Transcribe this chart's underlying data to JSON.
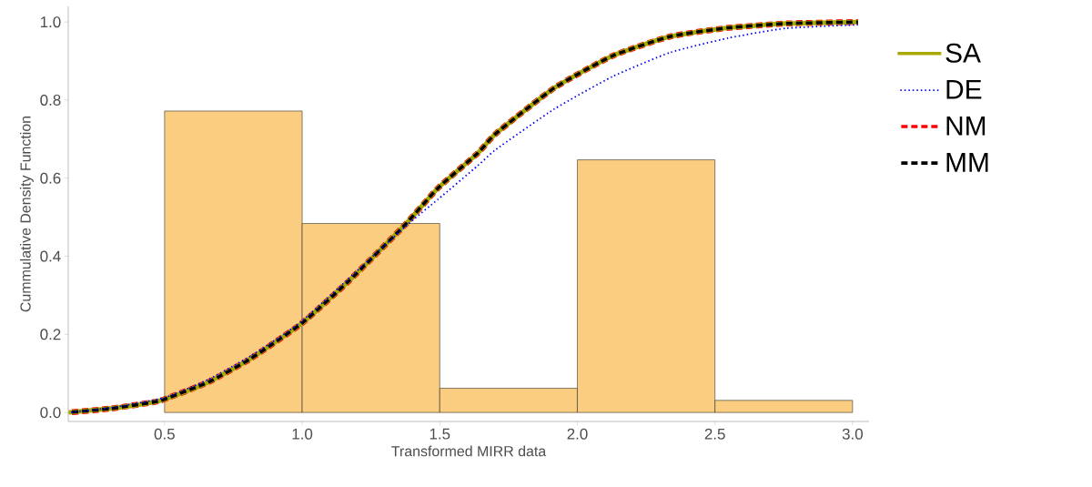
{
  "chart_data": {
    "type": "histogram",
    "xlabel": "Transformed MIRR data",
    "ylabel": "Cummulative Density Function",
    "bins": [
      0.5,
      1.0,
      1.5,
      2.0,
      2.5,
      3.0
    ],
    "values": [
      0.772,
      0.484,
      0.062,
      0.647,
      0.031
    ],
    "color": "#fbcd80",
    "xlim": [
      0.15,
      3.06
    ],
    "ylim": [
      -0.023,
      1.04
    ],
    "xticks": [
      {
        "value": 0.5,
        "label": "0.5"
      },
      {
        "value": 1.0,
        "label": "1.0"
      },
      {
        "value": 1.5,
        "label": "1.5"
      },
      {
        "value": 2.0,
        "label": "2.0"
      },
      {
        "value": 2.5,
        "label": "2.5"
      },
      {
        "value": 3.0,
        "label": "3.0"
      }
    ],
    "yticks": [
      {
        "value": 0,
        "label": "0.0"
      },
      {
        "value": 0.2,
        "label": "0.2"
      },
      {
        "value": 0.4,
        "label": "0.4"
      },
      {
        "value": 0.6,
        "label": "0.6"
      },
      {
        "value": 0.8,
        "label": "0.8"
      },
      {
        "value": 1.0,
        "label": "1.0"
      }
    ],
    "legend": "right",
    "grid": false,
    "series": [
      {
        "name": "SA",
        "type": "line",
        "line_style": "solid",
        "color": "#a8a800",
        "x": [
          0.151,
          0.304,
          0.456,
          0.5,
          0.66,
          0.813,
          1.0,
          1.17,
          1.373,
          1.494,
          1.638,
          1.705,
          1.916,
          2.127,
          2.338,
          2.549,
          2.76,
          3.02
        ],
        "values": [
          0.0,
          0.01,
          0.026,
          0.034,
          0.078,
          0.138,
          0.229,
          0.337,
          0.48,
          0.575,
          0.664,
          0.715,
          0.831,
          0.913,
          0.963,
          0.985,
          0.996,
          1.0
        ]
      },
      {
        "name": "DE",
        "type": "line",
        "line_style": "dotted",
        "color": "#0000ff",
        "x": [
          0.151,
          0.304,
          0.5,
          0.66,
          0.813,
          1.0,
          1.373,
          1.494,
          1.638,
          1.705,
          1.916,
          2.127,
          2.338,
          2.549,
          2.76,
          3.02
        ],
        "values": [
          0.0,
          0.012,
          0.038,
          0.085,
          0.145,
          0.235,
          0.475,
          0.546,
          0.632,
          0.674,
          0.777,
          0.86,
          0.922,
          0.959,
          0.984,
          0.993
        ]
      },
      {
        "name": "NM",
        "type": "line",
        "line_style": "dashed",
        "color": "#ff0000",
        "x": [
          0.151,
          0.304,
          0.456,
          0.5,
          0.66,
          0.813,
          1.0,
          1.17,
          1.373,
          1.494,
          1.638,
          1.705,
          1.916,
          2.127,
          2.338,
          2.549,
          2.76,
          3.02
        ],
        "values": [
          0.0,
          0.01,
          0.026,
          0.034,
          0.078,
          0.138,
          0.229,
          0.337,
          0.48,
          0.575,
          0.664,
          0.715,
          0.831,
          0.913,
          0.963,
          0.985,
          0.996,
          1.0
        ]
      },
      {
        "name": "MM",
        "type": "line",
        "line_style": "dashed",
        "color": "#000000",
        "x": [
          0.151,
          0.304,
          0.456,
          0.5,
          0.66,
          0.813,
          1.0,
          1.17,
          1.373,
          1.494,
          1.638,
          1.705,
          1.916,
          2.127,
          2.338,
          2.549,
          2.76,
          3.02
        ],
        "values": [
          0.0,
          0.01,
          0.026,
          0.034,
          0.078,
          0.138,
          0.229,
          0.337,
          0.48,
          0.575,
          0.664,
          0.715,
          0.831,
          0.913,
          0.963,
          0.985,
          0.996,
          1.0
        ]
      }
    ]
  }
}
